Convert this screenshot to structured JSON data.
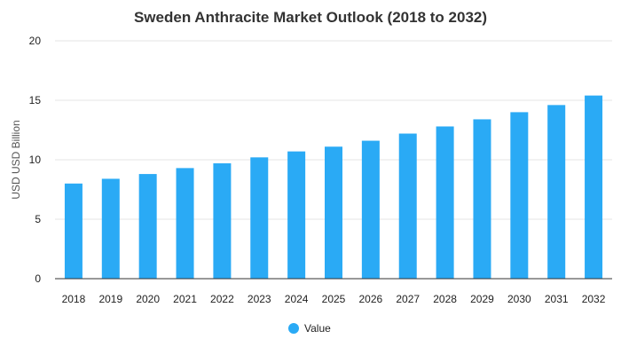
{
  "chart_data": {
    "type": "bar",
    "title": "Sweden Anthracite Market Outlook (2018 to 2032)",
    "xlabel": "",
    "ylabel": "USD USD Billion",
    "categories": [
      "2018",
      "2019",
      "2020",
      "2021",
      "2022",
      "2023",
      "2024",
      "2025",
      "2026",
      "2027",
      "2028",
      "2029",
      "2030",
      "2031",
      "2032"
    ],
    "series": [
      {
        "name": "Value",
        "color": "#2aaaf5",
        "values": [
          8.0,
          8.4,
          8.8,
          9.3,
          9.7,
          10.2,
          10.7,
          11.1,
          11.6,
          12.2,
          12.8,
          13.4,
          14.0,
          14.6,
          15.4
        ]
      }
    ],
    "ylim": [
      0,
      20
    ],
    "yticks": [
      0,
      5,
      10,
      15,
      20
    ],
    "grid": true,
    "legend_position": "bottom"
  }
}
